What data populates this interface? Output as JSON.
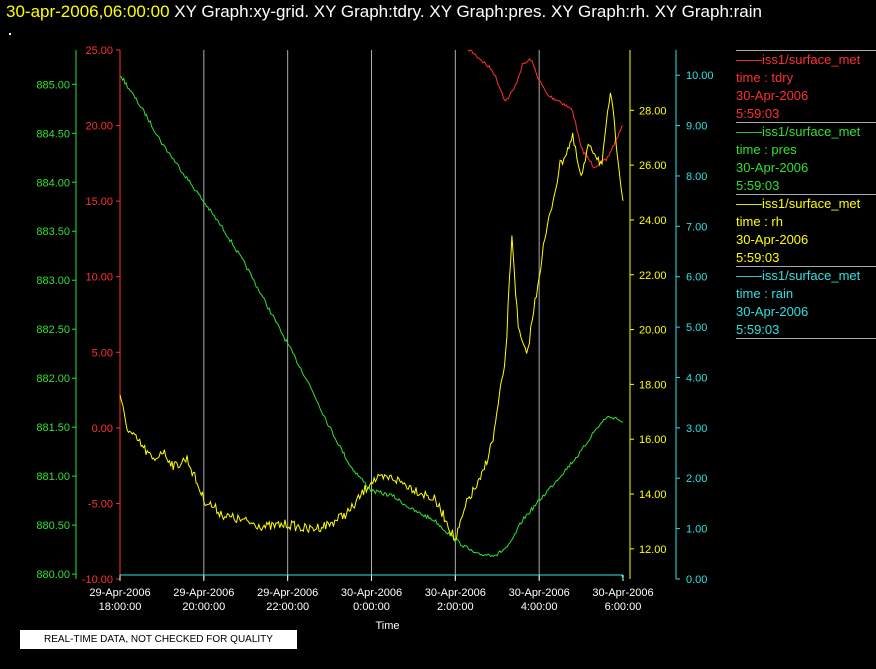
{
  "header": {
    "datetime": "30-apr-2006,06:00:00",
    "graphs": "  XY Graph:xy-grid.  XY Graph:tdry.  XY Graph:pres.  XY Graph:rh.  XY Graph:rain"
  },
  "footer_note": "REAL-TIME DATA, NOT CHECKED FOR QUALITY",
  "colors": {
    "tdry": "#ff3030",
    "pres": "#30e030",
    "rh": "#ffff00",
    "rain": "#30e0e0",
    "grid": "#ffffff"
  },
  "legend": [
    {
      "line1": "iss1/surface_met",
      "line2": "time : tdry",
      "line3": "30-Apr-2006",
      "line4": "5:59:03",
      "color": "#ff3030"
    },
    {
      "line1": "iss1/surface_met",
      "line2": "time : pres",
      "line3": "30-Apr-2006",
      "line4": "5:59:03",
      "color": "#30e030"
    },
    {
      "line1": "iss1/surface_met",
      "line2": "time : rh",
      "line3": "30-Apr-2006",
      "line4": "5:59:03",
      "color": "#ffff00"
    },
    {
      "line1": "iss1/surface_met",
      "line2": "time : rain",
      "line3": "30-Apr-2006",
      "line4": "5:59:03",
      "color": "#30e0e0"
    }
  ],
  "chart_data": {
    "type": "line",
    "xlabel": "Time",
    "x_ticks": [
      {
        "t": 0,
        "line1": "29-Apr-2006",
        "line2": "18:00:00"
      },
      {
        "t": 2,
        "line1": "29-Apr-2006",
        "line2": "20:00:00"
      },
      {
        "t": 4,
        "line1": "29-Apr-2006",
        "line2": "22:00:00"
      },
      {
        "t": 6,
        "line1": "30-Apr-2006",
        "line2": "0:00:00"
      },
      {
        "t": 8,
        "line1": "30-Apr-2006",
        "line2": "2:00:00"
      },
      {
        "t": 10,
        "line1": "30-Apr-2006",
        "line2": "4:00:00"
      },
      {
        "t": 12,
        "line1": "30-Apr-2006",
        "line2": "6:00:00"
      }
    ],
    "x_unit": "hours after 29-Apr-2006 18:00:00",
    "xlim": [
      0,
      12
    ],
    "grid": "vertical lines at x ticks",
    "axes": {
      "tdry": {
        "ylim": [
          -10,
          25
        ],
        "ticks": [
          "-10.00",
          "-5.00",
          "0.00",
          "5.00",
          "10.00",
          "15.00",
          "20.00",
          "25.00"
        ]
      },
      "pres": {
        "ylim": [
          879.95,
          885.35
        ],
        "ticks": [
          "880.00",
          "880.50",
          "881.00",
          "881.50",
          "882.00",
          "882.50",
          "883.00",
          "883.50",
          "884.00",
          "884.50",
          "885.00"
        ]
      },
      "rh": {
        "ylim": [
          10.9,
          30.2
        ],
        "ticks": [
          "12.00",
          "14.00",
          "16.00",
          "18.00",
          "20.00",
          "22.00",
          "24.00",
          "26.00",
          "28.00"
        ]
      },
      "rain": {
        "ylim": [
          0,
          10.5
        ],
        "ticks": [
          "0.00",
          "1.00",
          "2.00",
          "3.00",
          "4.00",
          "5.00",
          "6.00",
          "7.00",
          "8.00",
          "9.00",
          "10.00"
        ]
      }
    },
    "series": [
      {
        "name": "iss1/surface_met time : tdry",
        "axis": "tdry",
        "x": [
          8.3,
          8.6,
          8.9,
          9.2,
          9.4,
          9.6,
          9.8,
          10.0,
          10.2,
          10.5,
          10.8,
          11.0,
          11.3,
          11.6,
          12.0
        ],
        "y": [
          25.1,
          24.4,
          23.6,
          21.6,
          22.4,
          24.0,
          24.4,
          23.0,
          22.0,
          21.6,
          21.0,
          18.5,
          17.3,
          17.7,
          20.0
        ]
      },
      {
        "name": "iss1/surface_met time : pres",
        "axis": "pres",
        "x": [
          0.0,
          0.3,
          0.6,
          1.0,
          1.5,
          2.0,
          2.5,
          3.0,
          3.5,
          4.0,
          4.5,
          5.0,
          5.5,
          6.0,
          6.5,
          7.0,
          7.5,
          8.0,
          8.5,
          9.0,
          9.3,
          9.6,
          10.0,
          10.5,
          11.0,
          11.3,
          11.6,
          11.8,
          12.0
        ],
        "y": [
          885.1,
          884.9,
          884.7,
          884.4,
          884.1,
          883.8,
          883.5,
          883.15,
          882.75,
          882.35,
          881.95,
          881.5,
          881.1,
          880.85,
          880.8,
          880.65,
          880.55,
          880.35,
          880.2,
          880.2,
          880.3,
          880.55,
          880.75,
          881.0,
          881.25,
          881.45,
          881.6,
          881.6,
          881.55
        ]
      },
      {
        "name": "iss1/surface_met time : rh",
        "axis": "rh",
        "x": [
          0.0,
          0.2,
          0.5,
          0.8,
          1.0,
          1.3,
          1.6,
          2.0,
          2.5,
          3.0,
          3.5,
          4.0,
          4.5,
          5.0,
          5.5,
          6.0,
          6.5,
          7.0,
          7.5,
          7.8,
          8.0,
          8.3,
          8.6,
          8.9,
          9.2,
          9.35,
          9.5,
          9.7,
          9.9,
          10.1,
          10.3,
          10.5,
          10.8,
          11.0,
          11.2,
          11.5,
          11.7,
          12.0
        ],
        "y": [
          17.5,
          16.3,
          15.8,
          15.2,
          15.6,
          15.0,
          15.3,
          13.8,
          13.2,
          13.0,
          12.8,
          12.9,
          12.7,
          12.9,
          13.4,
          14.5,
          14.6,
          14.2,
          13.8,
          13.0,
          12.3,
          13.8,
          14.5,
          16.0,
          19.0,
          23.5,
          20.0,
          19.0,
          21.0,
          23.0,
          24.5,
          26.0,
          27.0,
          25.5,
          26.8,
          26.0,
          28.7,
          24.7
        ]
      },
      {
        "name": "iss1/surface_met time : rain",
        "axis": "rain",
        "x": [
          0,
          12
        ],
        "y": [
          0,
          0
        ]
      }
    ]
  }
}
